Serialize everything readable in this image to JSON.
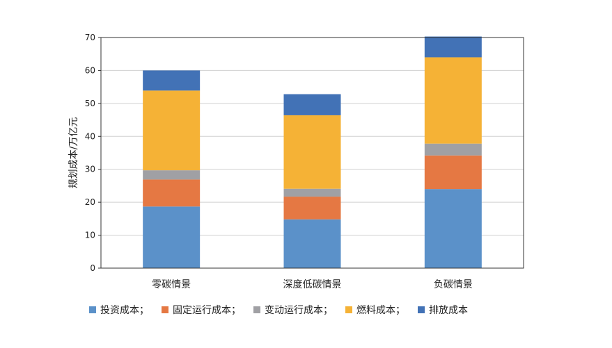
{
  "chart_data": {
    "type": "bar",
    "stacked": true,
    "categories": [
      "零碳情景",
      "深度低碳情景",
      "负碳情景"
    ],
    "series": [
      {
        "name": "投资成本；",
        "color": "#5B91C9",
        "values": [
          18.7,
          14.8,
          24.0
        ]
      },
      {
        "name": "固定运行成本；",
        "color": "#E57843",
        "values": [
          8.2,
          6.9,
          10.2
        ]
      },
      {
        "name": "变动运行成本；",
        "color": "#A0A0A4",
        "values": [
          2.8,
          2.4,
          3.6
        ]
      },
      {
        "name": "燃料成本；",
        "color": "#F5B236",
        "values": [
          24.2,
          22.3,
          26.2
        ]
      },
      {
        "name": "排放成本",
        "color": "#4272B6",
        "values": [
          6.1,
          6.4,
          6.3
        ]
      }
    ],
    "ylabel": "规划成本/万亿元",
    "xlabel": "",
    "ylim": [
      0,
      70
    ],
    "yticks": [
      "0",
      "10",
      "20",
      "30",
      "40",
      "50",
      "60",
      "70"
    ],
    "grid": true,
    "legend": "bottom"
  }
}
